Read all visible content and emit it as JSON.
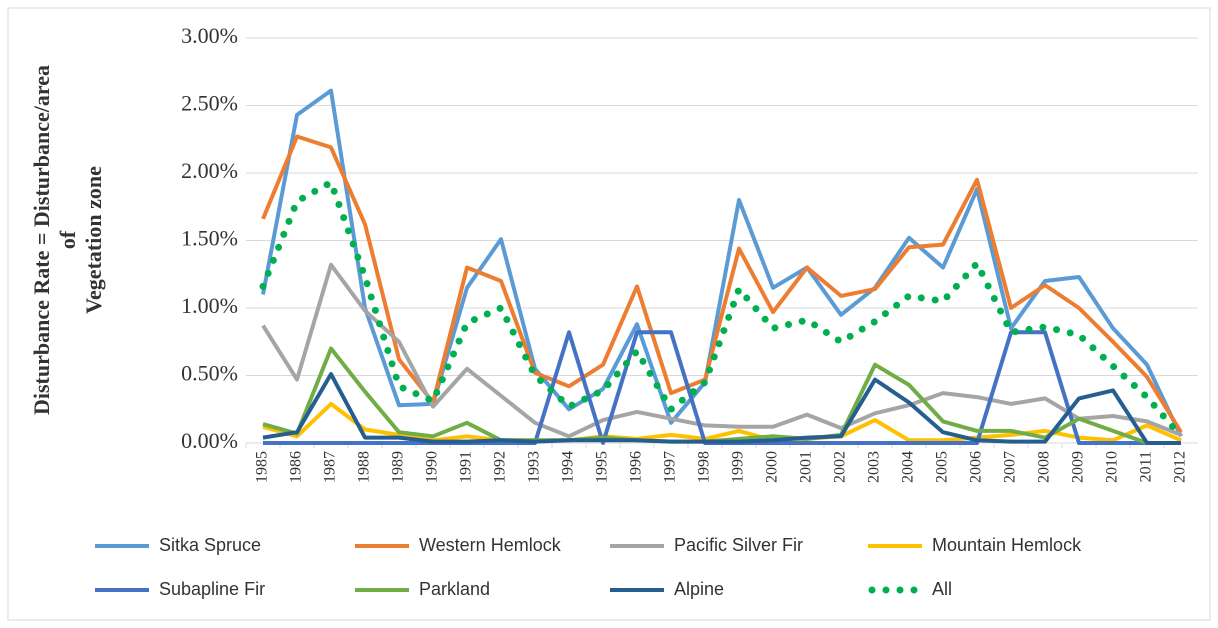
{
  "chart_data": {
    "type": "line",
    "y_label": [
      "Disturbance Rate = Disturbance/area",
      "of",
      "Vegetation zone"
    ],
    "categories": [
      "1985",
      "1986",
      "1987",
      "1988",
      "1989",
      "1990",
      "1991",
      "1992",
      "1993",
      "1994",
      "1995",
      "1996",
      "1997",
      "1998",
      "1999",
      "2000",
      "2001",
      "2002",
      "2003",
      "2004",
      "2005",
      "2006",
      "2007",
      "2008",
      "2009",
      "2010",
      "2011",
      "2012"
    ],
    "ylim": [
      0,
      3
    ],
    "yticks": [
      {
        "value": 0,
        "label": "0.00%"
      },
      {
        "value": 0.5,
        "label": "0.50%"
      },
      {
        "value": 1,
        "label": "1.00%"
      },
      {
        "value": 1.5,
        "label": "1.50%"
      },
      {
        "value": 2,
        "label": "2.00%"
      },
      {
        "value": 2.5,
        "label": "2.50%"
      },
      {
        "value": 3,
        "label": "3.00%"
      }
    ],
    "grid": true,
    "legend": "bottom",
    "series": [
      {
        "name": "Sitka Spruce",
        "color": "#5b9bd5",
        "values": [
          1.1,
          2.43,
          2.61,
          1.0,
          0.28,
          0.29,
          1.15,
          1.51,
          0.55,
          0.25,
          0.4,
          0.88,
          0.15,
          0.45,
          1.8,
          1.15,
          1.3,
          0.95,
          1.15,
          1.52,
          1.3,
          1.88,
          0.85,
          1.2,
          1.23,
          0.85,
          0.58,
          0.05
        ]
      },
      {
        "name": "Western Hemlock",
        "color": "#ed7d31",
        "values": [
          1.66,
          2.27,
          2.19,
          1.62,
          0.62,
          0.3,
          1.3,
          1.2,
          0.52,
          0.42,
          0.58,
          1.16,
          0.37,
          0.47,
          1.44,
          0.97,
          1.3,
          1.09,
          1.14,
          1.45,
          1.47,
          1.95,
          1.0,
          1.17,
          1.0,
          0.75,
          0.49,
          0.08
        ]
      },
      {
        "name": "Pacific Silver Fir",
        "color": "#a5a5a5",
        "values": [
          0.87,
          0.47,
          1.32,
          0.98,
          0.75,
          0.27,
          0.55,
          0.35,
          0.15,
          0.05,
          0.17,
          0.23,
          0.18,
          0.13,
          0.12,
          0.12,
          0.21,
          0.11,
          0.22,
          0.28,
          0.37,
          0.34,
          0.29,
          0.33,
          0.18,
          0.2,
          0.16,
          0.06
        ]
      },
      {
        "name": "Mountain Hemlock",
        "color": "#ffc000",
        "values": [
          0.12,
          0.05,
          0.29,
          0.1,
          0.06,
          0.02,
          0.05,
          0.02,
          0.02,
          0.02,
          0.05,
          0.03,
          0.06,
          0.03,
          0.09,
          0.02,
          0.03,
          0.05,
          0.17,
          0.02,
          0.02,
          0.04,
          0.06,
          0.09,
          0.04,
          0.02,
          0.13,
          0.02
        ]
      },
      {
        "name": "Subapline Fir",
        "color": "#4472c4",
        "values": [
          0,
          0,
          0,
          0,
          0,
          0,
          0,
          0,
          0,
          0.82,
          0,
          0.82,
          0.82,
          0,
          0,
          0,
          0,
          0,
          0,
          0,
          0,
          0,
          0.82,
          0.82,
          0,
          0,
          0,
          0
        ]
      },
      {
        "name": "Parkland",
        "color": "#70ad47",
        "values": [
          0.14,
          0.07,
          0.7,
          0.38,
          0.08,
          0.05,
          0.15,
          0.02,
          0.02,
          0.02,
          0.04,
          0.02,
          0.01,
          0.01,
          0.03,
          0.05,
          0.03,
          0.06,
          0.58,
          0.43,
          0.16,
          0.09,
          0.09,
          0.04,
          0.18,
          0.09,
          0,
          0
        ]
      },
      {
        "name": "Alpine",
        "color": "#255e91",
        "values": [
          0.04,
          0.08,
          0.51,
          0.04,
          0.04,
          0.01,
          0.01,
          0.02,
          0.01,
          0.02,
          0.02,
          0.02,
          0.01,
          0.01,
          0.01,
          0.02,
          0.04,
          0.05,
          0.47,
          0.3,
          0.08,
          0.02,
          0.01,
          0.01,
          0.33,
          0.39,
          0,
          0
        ]
      },
      {
        "name": "All",
        "color": "#00b050",
        "dotted": true,
        "values": [
          1.16,
          1.79,
          1.93,
          1.23,
          0.42,
          0.31,
          0.89,
          1.0,
          0.5,
          0.27,
          0.39,
          0.68,
          0.25,
          0.45,
          1.14,
          0.85,
          0.91,
          0.75,
          0.9,
          1.09,
          1.05,
          1.33,
          0.82,
          0.86,
          0.8,
          0.57,
          0.34,
          0.05
        ]
      }
    ]
  }
}
